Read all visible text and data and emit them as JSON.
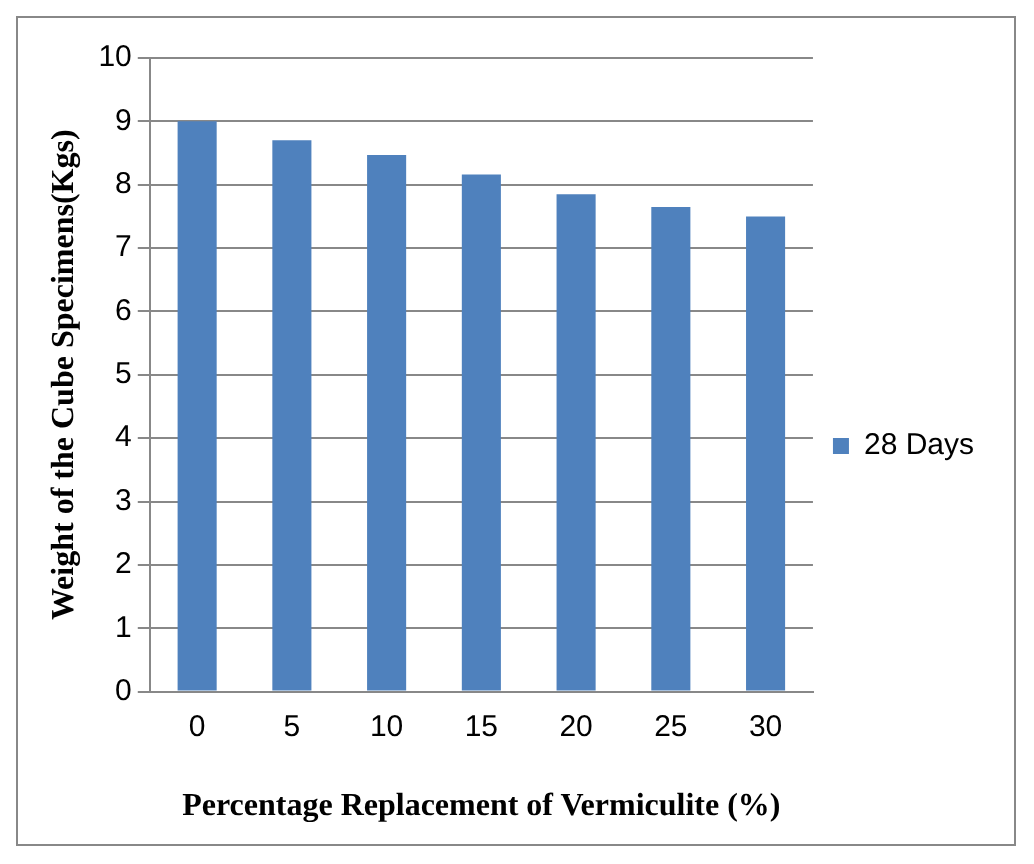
{
  "chart_data": {
    "type": "bar",
    "xlabel": "Percentage Replacement of Vermiculite (%)",
    "ylabel": "Weight of the Cube Specimens(Kgs)",
    "categories": [
      "0",
      "5",
      "10",
      "15",
      "20",
      "25",
      "30"
    ],
    "series": [
      {
        "name": "28 Days",
        "color": "#4f81bd",
        "values": [
          9.0,
          8.7,
          8.47,
          8.16,
          7.85,
          7.65,
          7.5
        ]
      }
    ],
    "ylim": [
      0,
      10
    ],
    "yticks": [
      0,
      1,
      2,
      3,
      4,
      5,
      6,
      7,
      8,
      9,
      10
    ],
    "grid": "y",
    "legend": "right"
  }
}
